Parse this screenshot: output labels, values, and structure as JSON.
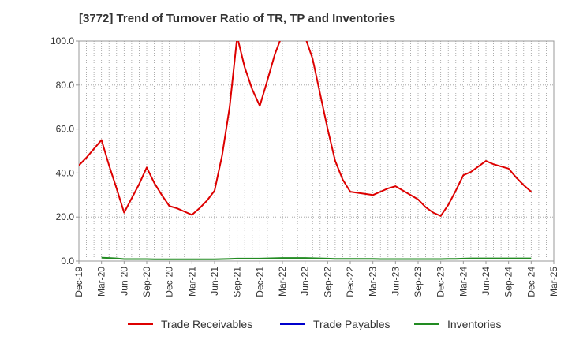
{
  "chart_data": {
    "type": "line",
    "title": "[3772]  Trend of Turnover Ratio of TR, TP and Inventories",
    "xlabel": "",
    "ylabel": "",
    "ylim": [
      0,
      100
    ],
    "yticks": [
      "0.0",
      "20.0",
      "40.0",
      "60.0",
      "80.0",
      "100.0"
    ],
    "x_tick_labels": [
      "Dec-19",
      "Mar-20",
      "Jun-20",
      "Sep-20",
      "Dec-20",
      "Mar-21",
      "Jun-21",
      "Sep-21",
      "Dec-21",
      "Mar-22",
      "Jun-22",
      "Sep-22",
      "Dec-22",
      "Mar-23",
      "Jun-23",
      "Sep-23",
      "Dec-23",
      "Mar-24",
      "Jun-24",
      "Sep-24",
      "Dec-24",
      "Mar-25"
    ],
    "grid": true,
    "legend_position": "bottom",
    "colors": {
      "trade_receivables": "#dd0000",
      "trade_payables": "#0000cc",
      "inventories": "#228b22",
      "grid": "#999999",
      "axis": "#999999"
    },
    "months": [
      "2019-12",
      "2020-01",
      "2020-02",
      "2020-03",
      "2020-04",
      "2020-05",
      "2020-06",
      "2020-07",
      "2020-08",
      "2020-09",
      "2020-10",
      "2020-11",
      "2020-12",
      "2021-01",
      "2021-02",
      "2021-03",
      "2021-04",
      "2021-05",
      "2021-06",
      "2021-07",
      "2021-08",
      "2021-09",
      "2021-10",
      "2021-11",
      "2021-12",
      "2022-01",
      "2022-02",
      "2022-03",
      "2022-04",
      "2022-05",
      "2022-06",
      "2022-07",
      "2022-08",
      "2022-09",
      "2022-10",
      "2022-11",
      "2022-12",
      "2023-01",
      "2023-02",
      "2023-03",
      "2023-04",
      "2023-05",
      "2023-06",
      "2023-07",
      "2023-08",
      "2023-09",
      "2023-10",
      "2023-11",
      "2023-12",
      "2024-01",
      "2024-02",
      "2024-03",
      "2024-04",
      "2024-05",
      "2024-06",
      "2024-07",
      "2024-08",
      "2024-09",
      "2024-10",
      "2024-11",
      "2024-12",
      "2025-01",
      "2025-02",
      "2025-03"
    ],
    "series": [
      {
        "name": "Trade Receivables",
        "color": "#dd0000",
        "values": [
          43.5,
          47,
          51,
          55,
          43.5,
          33,
          22,
          28.5,
          35,
          42.5,
          35.5,
          30,
          25,
          24,
          22.5,
          21,
          24,
          27.5,
          32,
          48,
          70,
          102,
          88,
          78,
          70.5,
          82,
          94,
          103,
          105,
          104,
          102,
          92,
          76,
          60,
          45.5,
          37,
          31.5,
          31,
          30.5,
          30,
          31.5,
          33,
          34,
          32,
          30,
          28,
          24.5,
          22,
          20.5,
          25.5,
          32,
          39,
          40.5,
          43,
          45.5,
          44,
          43,
          42,
          38,
          34.5,
          31.5,
          null,
          null,
          null
        ]
      },
      {
        "name": "Trade Payables",
        "color": "#0000cc",
        "values": []
      },
      {
        "name": "Inventories",
        "color": "#228b22",
        "values": [
          null,
          null,
          null,
          1.5,
          1.4,
          1.2,
          0.9,
          0.9,
          0.9,
          0.9,
          0.8,
          0.8,
          0.8,
          0.8,
          0.8,
          0.8,
          0.8,
          0.8,
          0.8,
          0.9,
          1.0,
          1.1,
          1.1,
          1.1,
          1.1,
          1.2,
          1.3,
          1.4,
          1.4,
          1.4,
          1.4,
          1.3,
          1.2,
          1.1,
          1.0,
          1.0,
          1.0,
          1.0,
          1.0,
          1.0,
          0.9,
          0.9,
          0.9,
          0.9,
          0.9,
          0.9,
          0.9,
          0.9,
          0.9,
          1.0,
          1.0,
          1.1,
          1.2,
          1.2,
          1.2,
          1.2,
          1.2,
          1.2,
          1.2,
          1.2,
          1.2,
          null,
          null,
          null
        ]
      }
    ]
  }
}
